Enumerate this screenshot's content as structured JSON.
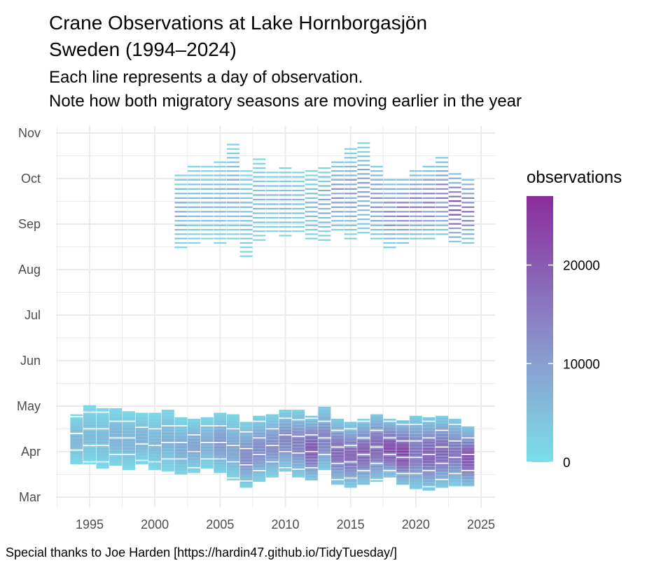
{
  "chart_data": {
    "type": "heatmap",
    "title": [
      "Crane Observations at Lake Hornborgasjön",
      "Sweden (1994–2024)"
    ],
    "subtitle": [
      "Each line represents a day of observation.",
      "Note how both migratory seasons are moving earlier in the year"
    ],
    "caption": "Special thanks to Joe Harden [https://hardin47.github.io/TidyTuesday/]",
    "xlabel": "",
    "ylabel": "",
    "x_ticks": [
      "1995",
      "2000",
      "2005",
      "2010",
      "2015",
      "2020",
      "2025"
    ],
    "y_ticks": [
      "Mar",
      "Apr",
      "May",
      "Jun",
      "Jul",
      "Aug",
      "Sep",
      "Oct",
      "Nov"
    ],
    "legend": {
      "title": "observations",
      "ticks": [
        "0",
        "10000",
        "20000"
      ],
      "range": [
        0,
        27000
      ],
      "placement": "right"
    },
    "colors": {
      "low": "#7adfe9",
      "mid": "#8a9fd0",
      "high": "#8a2c9c",
      "grid": "#ebebeb"
    },
    "grid": true,
    "seasons_by_year": [
      {
        "year": 1994,
        "spring": [
          "03-24",
          "04-25",
          7000
        ]
      },
      {
        "year": 1995,
        "spring": [
          "03-24",
          "05-01",
          6000
        ]
      },
      {
        "year": 1996,
        "spring": [
          "03-21",
          "04-29",
          6500
        ]
      },
      {
        "year": 1997,
        "spring": [
          "03-23",
          "04-29",
          8000
        ]
      },
      {
        "year": 1998,
        "spring": [
          "03-20",
          "04-27",
          7500
        ]
      },
      {
        "year": 1999,
        "spring": [
          "03-24",
          "04-26",
          8000
        ]
      },
      {
        "year": 2000,
        "spring": [
          "03-20",
          "04-26",
          7000
        ]
      },
      {
        "year": 2001,
        "spring": [
          "03-19",
          "04-29",
          8000
        ]
      },
      {
        "year": 2002,
        "spring": [
          "03-16",
          "04-23",
          9000
        ],
        "fall": [
          "08-16",
          "10-05",
          9000
        ]
      },
      {
        "year": 2003,
        "spring": [
          "03-18",
          "04-23",
          10000
        ],
        "fall": [
          "08-19",
          "10-11",
          6000
        ]
      },
      {
        "year": 2004,
        "spring": [
          "03-21",
          "04-23",
          9000
        ],
        "fall": [
          "08-22",
          "10-09",
          7000
        ]
      },
      {
        "year": 2005,
        "spring": [
          "03-18",
          "04-26",
          12000
        ],
        "fall": [
          "08-19",
          "10-14",
          7000
        ]
      },
      {
        "year": 2006,
        "spring": [
          "03-13",
          "04-25",
          10000
        ],
        "fall": [
          "08-22",
          "10-26",
          8000
        ]
      },
      {
        "year": 2007,
        "spring": [
          "03-08",
          "04-20",
          14000
        ],
        "fall": [
          "08-10",
          "10-07",
          6000
        ]
      },
      {
        "year": 2008,
        "spring": [
          "03-12",
          "04-24",
          14000
        ],
        "fall": [
          "08-21",
          "10-14",
          7000
        ]
      },
      {
        "year": 2009,
        "spring": [
          "03-15",
          "04-25",
          14000
        ],
        "fall": [
          "08-27",
          "10-06",
          6000
        ]
      },
      {
        "year": 2010,
        "spring": [
          "03-19",
          "04-28",
          15000
        ],
        "fall": [
          "08-24",
          "10-08",
          7000
        ]
      },
      {
        "year": 2011,
        "spring": [
          "03-15",
          "04-28",
          16000
        ],
        "fall": [
          "08-27",
          "10-07",
          6000
        ]
      },
      {
        "year": 2012,
        "spring": [
          "03-13",
          "04-24",
          22000
        ],
        "fall": [
          "08-22",
          "10-06",
          7000
        ]
      },
      {
        "year": 2013,
        "spring": [
          "03-19",
          "04-30",
          16000
        ],
        "fall": [
          "08-21",
          "10-09",
          9000
        ]
      },
      {
        "year": 2014,
        "spring": [
          "03-10",
          "04-22",
          20000
        ],
        "fall": [
          "08-28",
          "10-14",
          13000
        ]
      },
      {
        "year": 2015,
        "spring": [
          "03-08",
          "04-20",
          20000
        ],
        "fall": [
          "08-22",
          "10-21",
          12000
        ]
      },
      {
        "year": 2016,
        "spring": [
          "03-10",
          "04-22",
          21000
        ],
        "fall": [
          "08-26",
          "10-25",
          11000
        ]
      },
      {
        "year": 2017,
        "spring": [
          "03-12",
          "04-26",
          20000
        ],
        "fall": [
          "08-22",
          "10-11",
          13000
        ]
      },
      {
        "year": 2018,
        "spring": [
          "03-15",
          "04-22",
          24000
        ],
        "fall": [
          "08-16",
          "10-02",
          15000
        ]
      },
      {
        "year": 2019,
        "spring": [
          "03-10",
          "04-21",
          25000
        ],
        "fall": [
          "08-19",
          "10-01",
          17000
        ]
      },
      {
        "year": 2020,
        "spring": [
          "03-07",
          "04-24",
          18000
        ],
        "fall": [
          "08-22",
          "10-07",
          16000
        ]
      },
      {
        "year": 2021,
        "spring": [
          "03-06",
          "04-23",
          21000
        ],
        "fall": [
          "08-22",
          "10-09",
          17000
        ]
      },
      {
        "year": 2022,
        "spring": [
          "03-08",
          "04-24",
          20000
        ],
        "fall": [
          "08-25",
          "10-16",
          16000
        ]
      },
      {
        "year": 2023,
        "spring": [
          "03-09",
          "04-22",
          18000
        ],
        "fall": [
          "08-20",
          "10-04",
          24000
        ]
      },
      {
        "year": 2024,
        "spring": [
          "03-08",
          "04-17",
          23000
        ],
        "fall": [
          "08-19",
          "10-02",
          18000
        ]
      }
    ]
  }
}
